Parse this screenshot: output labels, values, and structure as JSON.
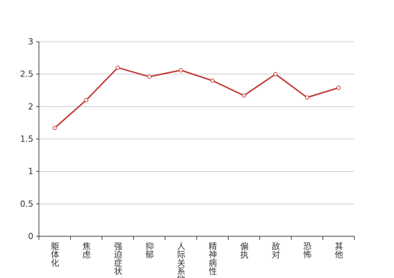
{
  "chart_data": {
    "type": "line",
    "categories": [
      "躯体化",
      "焦虑",
      "强迫症状",
      "抑郁",
      "人际关系敏感",
      "精神病性",
      "偏执",
      "敌对",
      "恐怖",
      "其他"
    ],
    "series": [
      {
        "color": "#c23531",
        "values": [
          1.67,
          2.1,
          2.6,
          2.46,
          2.56,
          2.4,
          2.17,
          2.5,
          2.14,
          2.29
        ]
      }
    ],
    "ylim": [
      0,
      3
    ],
    "yticks": [
      0,
      0.5,
      1,
      1.5,
      2,
      2.5,
      3
    ],
    "grid": true
  }
}
